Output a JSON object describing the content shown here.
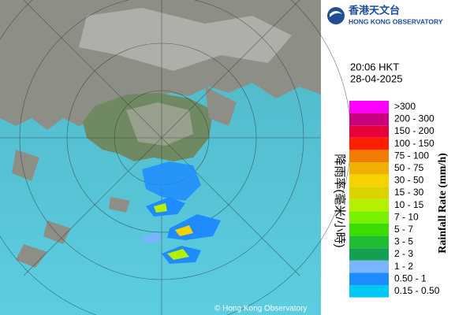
{
  "header": {
    "logo_chinese": "香港天文台",
    "logo_english": "HONG KONG OBSERVATORY"
  },
  "time": "20:06 HKT",
  "date": "28-04-2025",
  "legend": {
    "title_chinese": "降雨率(毫米/小時)",
    "title_english": "Rainfall Rate (mm/h)",
    "items": [
      {
        "label": ">300",
        "color": "#ff00ff"
      },
      {
        "label": "200 - 300",
        "color": "#c8007d"
      },
      {
        "label": "150 - 200",
        "color": "#e6003c"
      },
      {
        "label": "100 - 150",
        "color": "#ff1e00"
      },
      {
        "label": "75 - 100",
        "color": "#f07d00"
      },
      {
        "label": "50 - 75",
        "color": "#f0b000"
      },
      {
        "label": "30 - 50",
        "color": "#f5d200"
      },
      {
        "label": "15 - 30",
        "color": "#dcd200"
      },
      {
        "label": "10 - 15",
        "color": "#b4f000"
      },
      {
        "label": "7 - 10",
        "color": "#78f000"
      },
      {
        "label": "5 - 7",
        "color": "#3cdc00"
      },
      {
        "label": "3 - 5",
        "color": "#1ebe32"
      },
      {
        "label": "2 - 3",
        "color": "#14a050"
      },
      {
        "label": "1 - 2",
        "color": "#78b4ff"
      },
      {
        "label": "0.50 - 1",
        "color": "#1e8cff"
      },
      {
        "label": "0.15 - 0.50",
        "color": "#00c8f5"
      }
    ]
  },
  "copyright": "© Hong Kong Observatory"
}
